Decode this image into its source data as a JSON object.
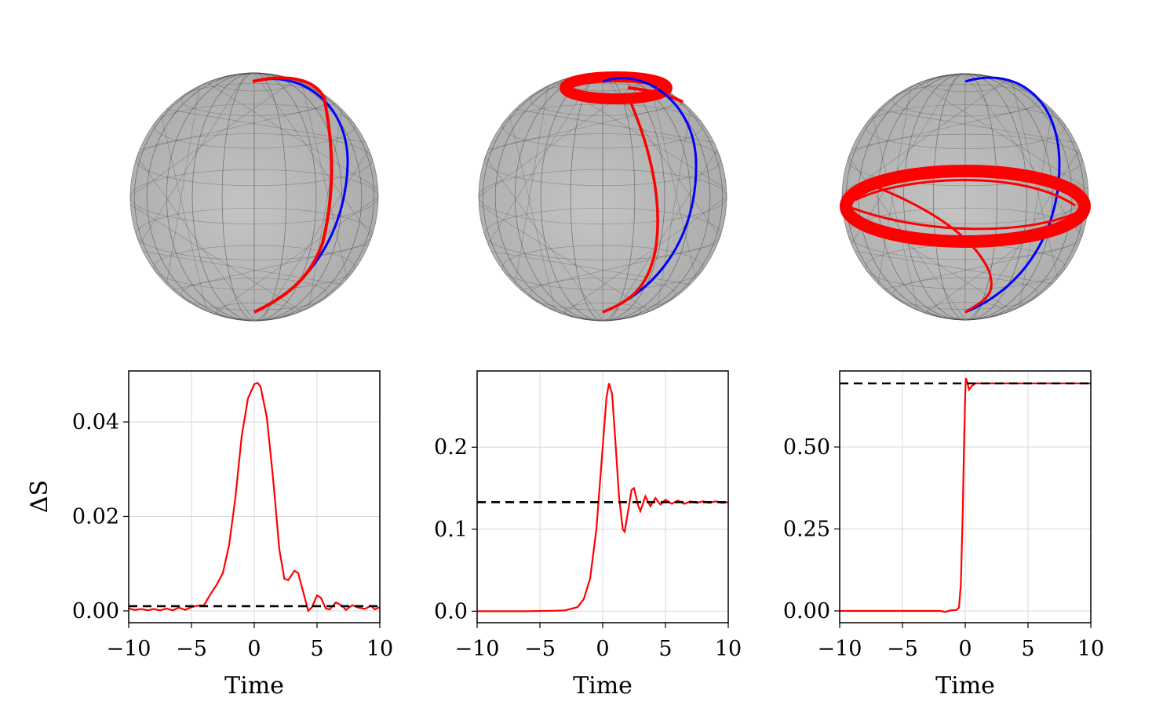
{
  "colors": {
    "trajectory": "#ff0000",
    "reference": "#0000ff",
    "target_line": "#000000",
    "sphere": "#b4b4b4"
  },
  "spheres": [
    {
      "panel": 1,
      "curves": [
        "red trajectory",
        "blue reference"
      ]
    },
    {
      "panel": 2,
      "curves": [
        "red trajectory",
        "blue reference"
      ]
    },
    {
      "panel": 3,
      "curves": [
        "red trajectory",
        "blue reference"
      ]
    }
  ],
  "chart_data": [
    {
      "type": "line",
      "xlabel": "Time",
      "ylabel": "ΔS",
      "xlim": [
        -10,
        10
      ],
      "ylim": [
        -0.0025,
        0.0508
      ],
      "xticks": [
        -10,
        -5,
        0,
        5,
        10
      ],
      "xtick_labels": [
        "−10",
        "−5",
        "0",
        "5",
        "10"
      ],
      "yticks": [
        0,
        0.02,
        0.04
      ],
      "ytick_labels": [
        "0.00",
        "0.02",
        "0.04"
      ],
      "grid": true,
      "dashed_reference": 0.001,
      "series": [
        {
          "color": "#ff0000",
          "x": [
            -10,
            -9.5,
            -9,
            -8.5,
            -8,
            -7.5,
            -7,
            -6.5,
            -6,
            -5.5,
            -5,
            -4.5,
            -4,
            -3.5,
            -3,
            -2.5,
            -2,
            -1.5,
            -1,
            -0.5,
            0,
            0.25,
            0.5,
            1,
            1.5,
            2,
            2.4,
            2.7,
            3.2,
            3.5,
            4,
            4.3,
            4.6,
            5,
            5.3,
            5.7,
            6,
            6.5,
            7,
            7.3,
            7.8,
            8.3,
            8.8,
            9.3,
            9.6,
            10
          ],
          "y": [
            0.0005,
            0.0002,
            0.0004,
            0.0001,
            0.0004,
            0.0001,
            0.0005,
            0.0001,
            0.0007,
            0.0002,
            0.0008,
            0.0011,
            0.0012,
            0.0035,
            0.0055,
            0.008,
            0.014,
            0.024,
            0.037,
            0.045,
            0.048,
            0.0483,
            0.0475,
            0.041,
            0.028,
            0.013,
            0.0068,
            0.0065,
            0.0085,
            0.008,
            0.003,
            0.0,
            0.0008,
            0.0033,
            0.0028,
            0.0005,
            0.0003,
            0.0018,
            0.0011,
            0.0002,
            0.0012,
            0.0007,
            0.0004,
            0.0011,
            0.0003,
            0.0008
          ]
        }
      ]
    },
    {
      "type": "line",
      "xlabel": "Time",
      "ylabel": "",
      "xlim": [
        -10,
        10
      ],
      "ylim": [
        -0.014,
        0.293
      ],
      "xticks": [
        -10,
        -5,
        0,
        5,
        10
      ],
      "xtick_labels": [
        "−10",
        "−5",
        "0",
        "5",
        "10"
      ],
      "yticks": [
        0,
        0.1,
        0.2
      ],
      "ytick_labels": [
        "0.0",
        "0.1",
        "0.2"
      ],
      "grid": true,
      "dashed_reference": 0.133,
      "series": [
        {
          "color": "#ff0000",
          "x": [
            -10,
            -6,
            -4,
            -3,
            -2,
            -1.5,
            -1,
            -0.5,
            0,
            0.3,
            0.5,
            0.75,
            1,
            1.3,
            1.6,
            1.75,
            2,
            2.3,
            2.5,
            2.8,
            3,
            3.4,
            3.8,
            4.2,
            4.6,
            5,
            5.5,
            6,
            6.5,
            7,
            7.5,
            8,
            8.5,
            9,
            9.5,
            10
          ],
          "y": [
            0,
            0,
            0.0005,
            0.001,
            0.005,
            0.015,
            0.04,
            0.1,
            0.2,
            0.26,
            0.278,
            0.265,
            0.21,
            0.14,
            0.1,
            0.097,
            0.12,
            0.148,
            0.15,
            0.13,
            0.122,
            0.14,
            0.128,
            0.138,
            0.13,
            0.136,
            0.131,
            0.135,
            0.131,
            0.134,
            0.132,
            0.134,
            0.132,
            0.134,
            0.132,
            0.133
          ]
        }
      ]
    },
    {
      "type": "line",
      "xlabel": "Time",
      "ylabel": "",
      "xlim": [
        -10,
        10
      ],
      "ylim": [
        -0.036,
        0.732
      ],
      "xticks": [
        -10,
        -5,
        0,
        5,
        10
      ],
      "xtick_labels": [
        "−10",
        "−5",
        "0",
        "5",
        "10"
      ],
      "yticks": [
        0,
        0.25,
        0.5
      ],
      "ytick_labels": [
        "0.00",
        "0.25",
        "0.50"
      ],
      "grid": true,
      "dashed_reference": 0.694,
      "series": [
        {
          "color": "#ff0000",
          "x": [
            -10,
            -5,
            -2,
            -1.6,
            -1.2,
            -0.7,
            -0.5,
            -0.35,
            -0.2,
            -0.1,
            0,
            0.05,
            0.15,
            0.3,
            0.5,
            0.8,
            1,
            5,
            10
          ],
          "y": [
            0,
            0,
            0,
            -0.003,
            0.001,
            0.003,
            0.01,
            0.08,
            0.3,
            0.5,
            0.66,
            0.71,
            0.7,
            0.675,
            0.685,
            0.694,
            0.694,
            0.694,
            0.694
          ]
        }
      ]
    }
  ]
}
